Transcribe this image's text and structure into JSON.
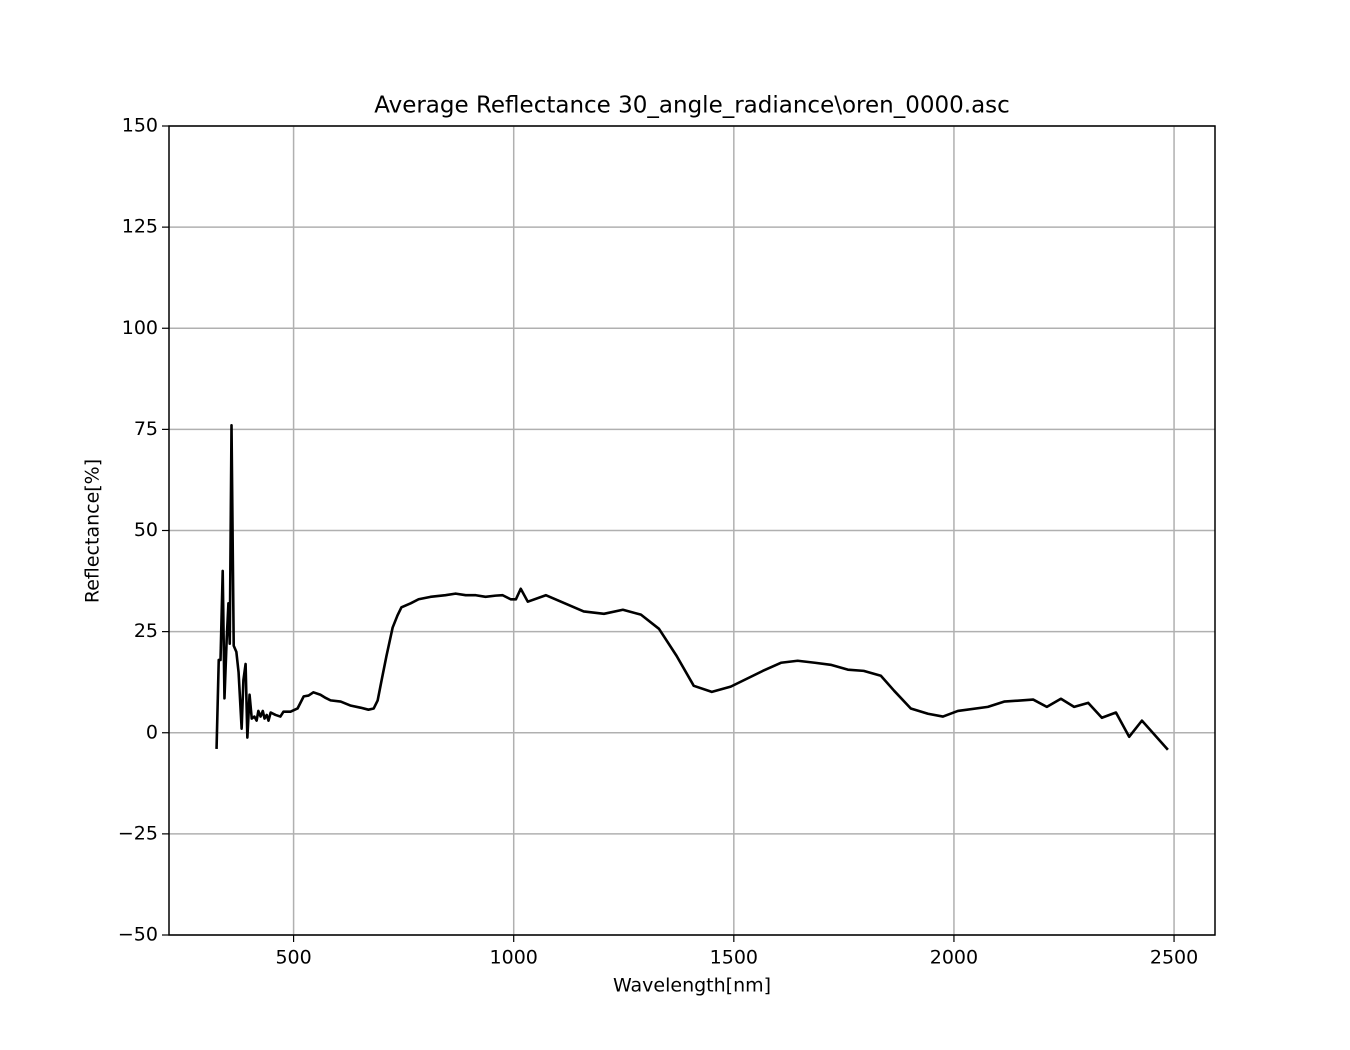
{
  "chart_data": {
    "type": "line",
    "title": "Average Reflectance 30_angle_radiance\\oren_0000.asc",
    "x_label": "Wavelength[nm]",
    "y_label": "Reflectance[%]",
    "grid": true,
    "xlim": [
      217,
      2593
    ],
    "ylim": [
      -50,
      150
    ],
    "xticks": [
      500,
      1000,
      1500,
      2000,
      2500
    ],
    "yticks": [
      {
        "value": -50,
        "label": "−50"
      },
      {
        "value": -25,
        "label": "−25"
      },
      0,
      25,
      50,
      75,
      100,
      125,
      150
    ],
    "series": [
      {
        "color": "#000000",
        "x": [
          325,
          330,
          334,
          339,
          343,
          348,
          352,
          355,
          359,
          364,
          370,
          375,
          382,
          386,
          391,
          395,
          400,
          405,
          411,
          416,
          420,
          425,
          430,
          434,
          439,
          443,
          448,
          459,
          470,
          477,
          493,
          509,
          523,
          534,
          545,
          561,
          573,
          584,
          607,
          630,
          652,
          670,
          682,
          691,
          700,
          711,
          725,
          736,
          745,
          766,
          784,
          811,
          845,
          868,
          891,
          914,
          936,
          959,
          975,
          993,
          1005,
          1016,
          1032,
          1073,
          1159,
          1205,
          1248,
          1289,
          1330,
          1370,
          1409,
          1450,
          1493,
          1566,
          1607,
          1645,
          1684,
          1720,
          1759,
          1795,
          1834,
          1864,
          1902,
          1941,
          1975,
          2009,
          2077,
          2114,
          2180,
          2211,
          2243,
          2273,
          2305,
          2336,
          2368,
          2398,
          2427,
          2486
        ],
        "values": [
          -4,
          18,
          18,
          40,
          8.5,
          23,
          32,
          22,
          76,
          21.5,
          20,
          15,
          1,
          13,
          17,
          -1.2,
          9.4,
          3.5,
          4,
          3,
          5.4,
          4,
          5.4,
          3.5,
          4.4,
          3,
          5,
          4.4,
          4,
          5.2,
          5.2,
          6,
          9,
          9.2,
          10,
          9.4,
          8.6,
          8,
          7.7,
          6.7,
          6.2,
          5.7,
          6,
          8,
          13,
          19,
          26,
          29,
          31,
          32,
          33,
          33.6,
          34,
          34.4,
          34,
          34,
          33.6,
          33.9,
          34,
          33,
          33,
          35.6,
          32.4,
          34,
          30,
          29.4,
          30.4,
          29.2,
          25.7,
          19,
          11.6,
          10.1,
          11.4,
          15.3,
          17.3,
          17.8,
          17.3,
          16.8,
          15.6,
          15.3,
          14.1,
          10.4,
          6,
          4.7,
          4,
          5.4,
          6.4,
          7.7,
          8.2,
          6.4,
          8.4,
          6.4,
          7.4,
          3.7,
          5,
          -1,
          3,
          -4.2
        ]
      }
    ]
  }
}
